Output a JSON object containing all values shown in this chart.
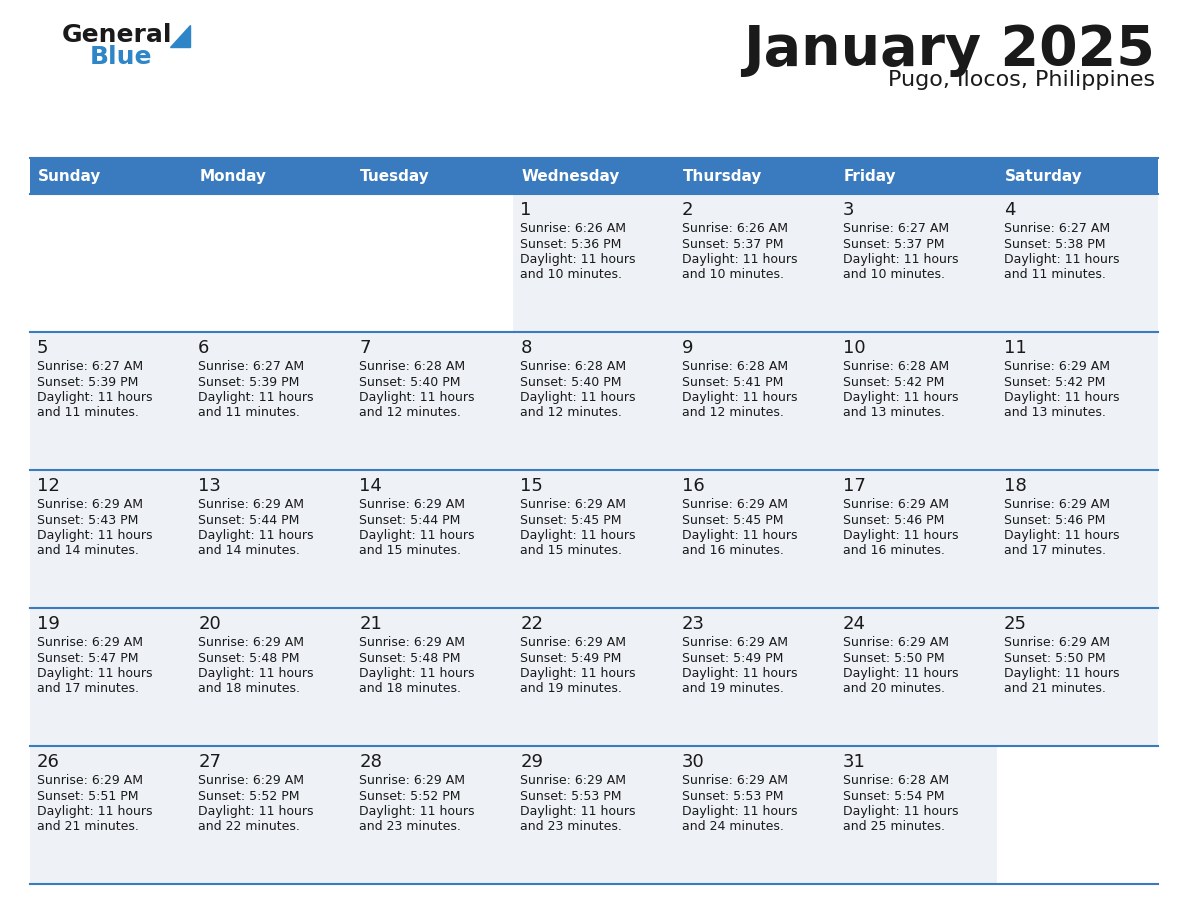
{
  "title": "January 2025",
  "subtitle": "Pugo, Ilocos, Philippines",
  "header_color": "#3a7bbf",
  "header_text_color": "#ffffff",
  "cell_bg_color": "#eef2f7",
  "cell_empty_bg": "#ffffff",
  "border_color": "#3a7bbf",
  "text_color": "#1a1a1a",
  "day_headers": [
    "Sunday",
    "Monday",
    "Tuesday",
    "Wednesday",
    "Thursday",
    "Friday",
    "Saturday"
  ],
  "calendar_data": [
    [
      {
        "day": "",
        "sunrise": "",
        "sunset": "",
        "daylight": ""
      },
      {
        "day": "",
        "sunrise": "",
        "sunset": "",
        "daylight": ""
      },
      {
        "day": "",
        "sunrise": "",
        "sunset": "",
        "daylight": ""
      },
      {
        "day": "1",
        "sunrise": "6:26 AM",
        "sunset": "5:36 PM",
        "daylight_hours": "11",
        "daylight_mins": "10"
      },
      {
        "day": "2",
        "sunrise": "6:26 AM",
        "sunset": "5:37 PM",
        "daylight_hours": "11",
        "daylight_mins": "10"
      },
      {
        "day": "3",
        "sunrise": "6:27 AM",
        "sunset": "5:37 PM",
        "daylight_hours": "11",
        "daylight_mins": "10"
      },
      {
        "day": "4",
        "sunrise": "6:27 AM",
        "sunset": "5:38 PM",
        "daylight_hours": "11",
        "daylight_mins": "11"
      }
    ],
    [
      {
        "day": "5",
        "sunrise": "6:27 AM",
        "sunset": "5:39 PM",
        "daylight_hours": "11",
        "daylight_mins": "11"
      },
      {
        "day": "6",
        "sunrise": "6:27 AM",
        "sunset": "5:39 PM",
        "daylight_hours": "11",
        "daylight_mins": "11"
      },
      {
        "day": "7",
        "sunrise": "6:28 AM",
        "sunset": "5:40 PM",
        "daylight_hours": "11",
        "daylight_mins": "12"
      },
      {
        "day": "8",
        "sunrise": "6:28 AM",
        "sunset": "5:40 PM",
        "daylight_hours": "11",
        "daylight_mins": "12"
      },
      {
        "day": "9",
        "sunrise": "6:28 AM",
        "sunset": "5:41 PM",
        "daylight_hours": "11",
        "daylight_mins": "12"
      },
      {
        "day": "10",
        "sunrise": "6:28 AM",
        "sunset": "5:42 PM",
        "daylight_hours": "11",
        "daylight_mins": "13"
      },
      {
        "day": "11",
        "sunrise": "6:29 AM",
        "sunset": "5:42 PM",
        "daylight_hours": "11",
        "daylight_mins": "13"
      }
    ],
    [
      {
        "day": "12",
        "sunrise": "6:29 AM",
        "sunset": "5:43 PM",
        "daylight_hours": "11",
        "daylight_mins": "14"
      },
      {
        "day": "13",
        "sunrise": "6:29 AM",
        "sunset": "5:44 PM",
        "daylight_hours": "11",
        "daylight_mins": "14"
      },
      {
        "day": "14",
        "sunrise": "6:29 AM",
        "sunset": "5:44 PM",
        "daylight_hours": "11",
        "daylight_mins": "15"
      },
      {
        "day": "15",
        "sunrise": "6:29 AM",
        "sunset": "5:45 PM",
        "daylight_hours": "11",
        "daylight_mins": "15"
      },
      {
        "day": "16",
        "sunrise": "6:29 AM",
        "sunset": "5:45 PM",
        "daylight_hours": "11",
        "daylight_mins": "16"
      },
      {
        "day": "17",
        "sunrise": "6:29 AM",
        "sunset": "5:46 PM",
        "daylight_hours": "11",
        "daylight_mins": "16"
      },
      {
        "day": "18",
        "sunrise": "6:29 AM",
        "sunset": "5:46 PM",
        "daylight_hours": "11",
        "daylight_mins": "17"
      }
    ],
    [
      {
        "day": "19",
        "sunrise": "6:29 AM",
        "sunset": "5:47 PM",
        "daylight_hours": "11",
        "daylight_mins": "17"
      },
      {
        "day": "20",
        "sunrise": "6:29 AM",
        "sunset": "5:48 PM",
        "daylight_hours": "11",
        "daylight_mins": "18"
      },
      {
        "day": "21",
        "sunrise": "6:29 AM",
        "sunset": "5:48 PM",
        "daylight_hours": "11",
        "daylight_mins": "18"
      },
      {
        "day": "22",
        "sunrise": "6:29 AM",
        "sunset": "5:49 PM",
        "daylight_hours": "11",
        "daylight_mins": "19"
      },
      {
        "day": "23",
        "sunrise": "6:29 AM",
        "sunset": "5:49 PM",
        "daylight_hours": "11",
        "daylight_mins": "19"
      },
      {
        "day": "24",
        "sunrise": "6:29 AM",
        "sunset": "5:50 PM",
        "daylight_hours": "11",
        "daylight_mins": "20"
      },
      {
        "day": "25",
        "sunrise": "6:29 AM",
        "sunset": "5:50 PM",
        "daylight_hours": "11",
        "daylight_mins": "21"
      }
    ],
    [
      {
        "day": "26",
        "sunrise": "6:29 AM",
        "sunset": "5:51 PM",
        "daylight_hours": "11",
        "daylight_mins": "21"
      },
      {
        "day": "27",
        "sunrise": "6:29 AM",
        "sunset": "5:52 PM",
        "daylight_hours": "11",
        "daylight_mins": "22"
      },
      {
        "day": "28",
        "sunrise": "6:29 AM",
        "sunset": "5:52 PM",
        "daylight_hours": "11",
        "daylight_mins": "23"
      },
      {
        "day": "29",
        "sunrise": "6:29 AM",
        "sunset": "5:53 PM",
        "daylight_hours": "11",
        "daylight_mins": "23"
      },
      {
        "day": "30",
        "sunrise": "6:29 AM",
        "sunset": "5:53 PM",
        "daylight_hours": "11",
        "daylight_mins": "24"
      },
      {
        "day": "31",
        "sunrise": "6:28 AM",
        "sunset": "5:54 PM",
        "daylight_hours": "11",
        "daylight_mins": "25"
      },
      {
        "day": "",
        "sunrise": "",
        "sunset": "",
        "daylight_hours": "",
        "daylight_mins": ""
      }
    ]
  ],
  "logo_text_general": "General",
  "logo_text_blue": "Blue",
  "logo_color_general": "#1a1a1a",
  "logo_color_blue": "#2e86c8"
}
